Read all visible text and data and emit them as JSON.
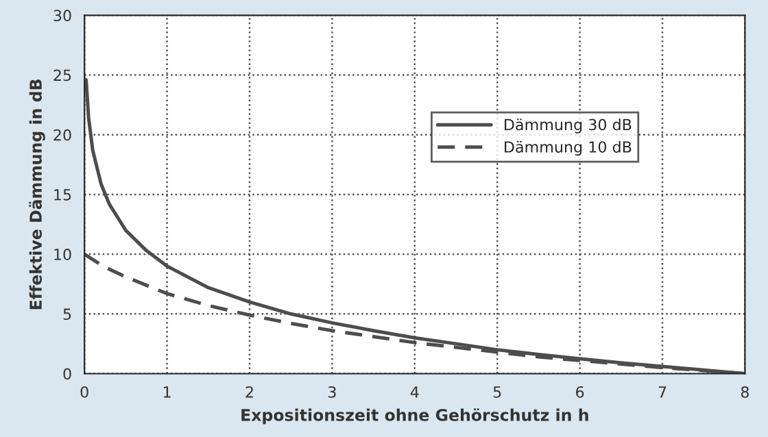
{
  "chart_data": {
    "type": "line",
    "xlabel": "Expositionszeit ohne Gehörschutz in h",
    "ylabel": "Effektive Dämmung in dB",
    "xlim": [
      0,
      8
    ],
    "ylim": [
      0,
      30
    ],
    "xticks": [
      0,
      1,
      2,
      3,
      4,
      5,
      6,
      7,
      8
    ],
    "yticks": [
      0,
      5,
      10,
      15,
      20,
      25,
      30
    ],
    "grid": true,
    "legend": "top right",
    "series": [
      {
        "name": "Dämmung 30 dB",
        "color": "#4d4d4d",
        "line_style": "solid",
        "x": [
          0.02,
          0.05,
          0.1,
          0.2,
          0.3,
          0.5,
          0.75,
          1,
          1.5,
          2,
          2.5,
          3,
          3.5,
          4,
          4.5,
          5,
          5.5,
          6,
          6.5,
          7,
          7.5,
          8
        ],
        "values": [
          24.6,
          21.4,
          18.7,
          15.9,
          14.2,
          12.0,
          10.3,
          9.0,
          7.2,
          6.0,
          5.0,
          4.25,
          3.6,
          3.0,
          2.5,
          2.0,
          1.6,
          1.25,
          0.9,
          0.6,
          0.3,
          0
        ]
      },
      {
        "name": "Dämmung 10 dB",
        "color": "#4d4d4d",
        "line_style": "dashed",
        "x": [
          0,
          0.25,
          0.5,
          1,
          1.5,
          2,
          2.5,
          3,
          3.5,
          4,
          4.5,
          5,
          5.5,
          6,
          6.5,
          7,
          7.5,
          8
        ],
        "values": [
          10,
          8.9,
          8.1,
          6.7,
          5.7,
          4.9,
          4.2,
          3.6,
          3.1,
          2.6,
          2.2,
          1.8,
          1.4,
          1.1,
          0.8,
          0.5,
          0.25,
          0
        ]
      }
    ]
  }
}
